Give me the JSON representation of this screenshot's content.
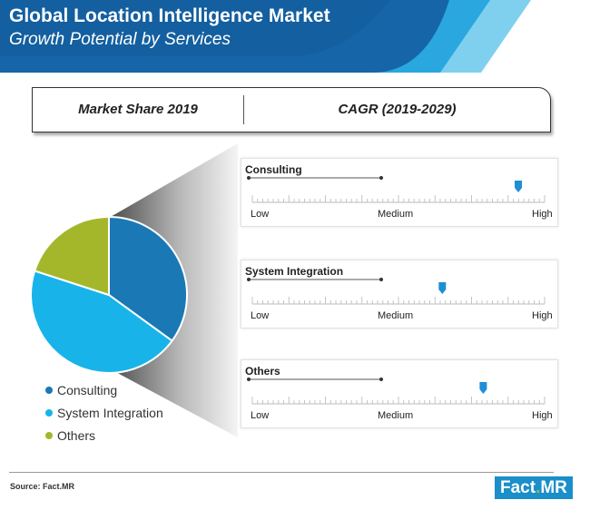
{
  "header": {
    "title": "Global Location Intelligence Market",
    "subtitle": "Growth Potential by Services"
  },
  "table_header": {
    "left": "Market Share 2019",
    "right": "CAGR (2019-2029)"
  },
  "colors": {
    "header_dark": "#1565a8",
    "header_mid": "#2aa7de",
    "header_light": "#7fd0ef",
    "consulting": "#1a78b5",
    "system_integration": "#18b4e9",
    "others": "#a4b72a",
    "marker": "#1e8fd5"
  },
  "chart_data": [
    {
      "type": "pie",
      "title": "Market Share 2019",
      "categories": [
        "Consulting",
        "System Integration",
        "Others"
      ],
      "values": [
        35,
        45,
        20
      ],
      "colors": [
        "#1a78b5",
        "#18b4e9",
        "#a4b72a"
      ],
      "legend": "bottom-left"
    },
    {
      "type": "scatter",
      "title": "CAGR (2019-2029)",
      "scale_labels": [
        "Low",
        "Medium",
        "High"
      ],
      "scale_range": [
        0,
        1
      ],
      "series": [
        {
          "name": "Consulting",
          "value": 0.91
        },
        {
          "name": "System Integration",
          "value": 0.65
        },
        {
          "name": "Others",
          "value": 0.79
        }
      ]
    }
  ],
  "footer": {
    "source": "Source: Fact.MR",
    "logo_main": "Fact",
    "logo_dot": ".",
    "logo_end": "MR"
  }
}
